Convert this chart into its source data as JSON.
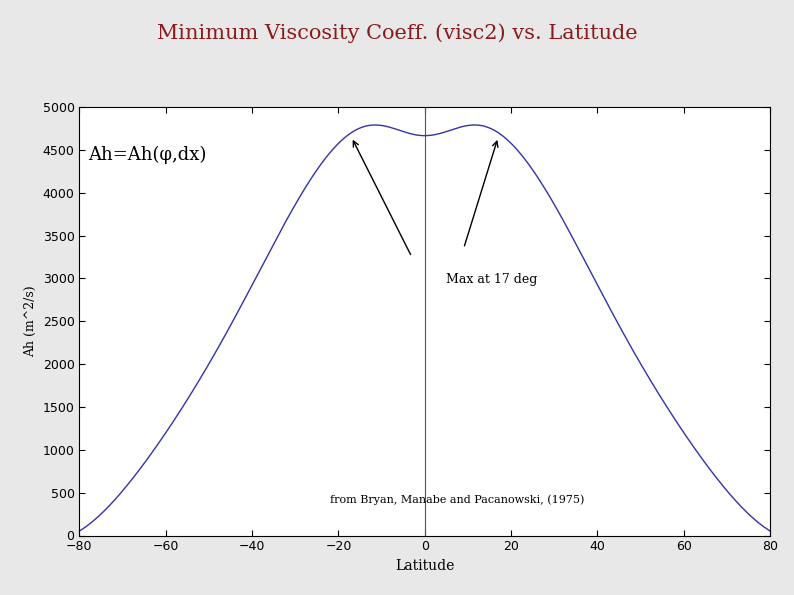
{
  "title": "Minimum Viscosity Coeff. (visc2) vs. Latitude",
  "title_color": "#8B1A1A",
  "xlabel": "Latitude",
  "ylabel": "Ah (m^2/s)",
  "xlim": [
    -80,
    80
  ],
  "ylim": [
    0,
    5000
  ],
  "xticks": [
    -80,
    -60,
    -40,
    -20,
    0,
    20,
    40,
    60,
    80
  ],
  "yticks": [
    0,
    500,
    1000,
    1500,
    2000,
    2500,
    3000,
    3500,
    4000,
    4500,
    5000
  ],
  "line_color": "#3333AA",
  "vline_x": 0,
  "vline_color": "#555555",
  "vline_style": "-",
  "annotation_text": "Ah=Ah(φ,dx)",
  "text_max": "Max at 17 deg",
  "text_ref": "from Bryan, Manabe and Pacanowski, (1975)",
  "curve_base_A": 3300,
  "curve_base_n": 1.0,
  "curve_bump_amp": 1500,
  "curve_bump_sigma": 18,
  "curve_bump_lat": 17,
  "curve_dip_amp": 400,
  "curve_dip_sigma": 8,
  "bg_color": "#E8E8E8",
  "ax_bg_color": "#FFFFFF"
}
